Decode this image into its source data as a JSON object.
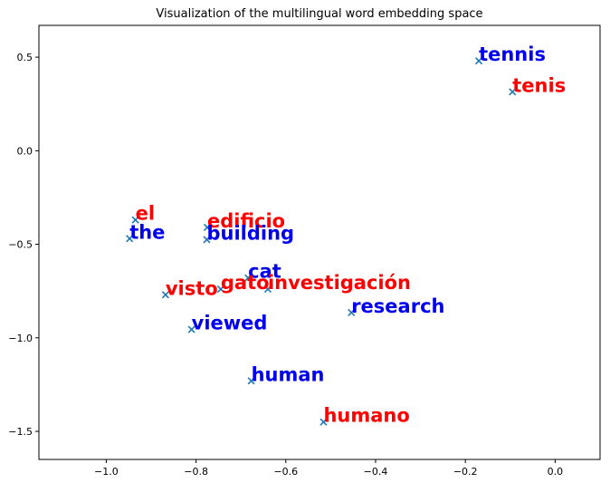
{
  "chart_data": {
    "type": "scatter",
    "title": "Visualization of the multilingual word embedding space",
    "xlabel": "",
    "ylabel": "",
    "xlim": [
      -1.15,
      0.1
    ],
    "ylim": [
      -1.65,
      0.67
    ],
    "grid": false,
    "legend": "none",
    "x_ticks": [
      -1.0,
      -0.8,
      -0.6,
      -0.4,
      -0.2,
      0.0
    ],
    "x_tick_labels": [
      "−1.0",
      "−0.8",
      "−0.6",
      "−0.4",
      "−0.2",
      "0.0"
    ],
    "y_ticks": [
      0.5,
      0.0,
      -0.5,
      -1.0,
      -1.5
    ],
    "y_tick_labels": [
      "0.5",
      "0.0",
      "−0.5",
      "−1.0",
      "−1.5"
    ],
    "marker_color": "#1f77b4",
    "label_colors": {
      "english": "#0000ee",
      "spanish": "#ff0000"
    },
    "points": [
      {
        "label": "tennis",
        "lang": "english",
        "x": -0.17,
        "y": 0.48
      },
      {
        "label": "tenis",
        "lang": "spanish",
        "x": -0.095,
        "y": 0.315
      },
      {
        "label": "el",
        "lang": "spanish",
        "x": -0.935,
        "y": -0.37
      },
      {
        "label": "the",
        "lang": "english",
        "x": -0.948,
        "y": -0.47
      },
      {
        "label": "edificio",
        "lang": "spanish",
        "x": -0.775,
        "y": -0.41
      },
      {
        "label": "building",
        "lang": "english",
        "x": -0.776,
        "y": -0.475
      },
      {
        "label": "cat",
        "lang": "english",
        "x": -0.684,
        "y": -0.68
      },
      {
        "label": "gato",
        "lang": "spanish",
        "x": -0.745,
        "y": -0.74
      },
      {
        "label": "investigación",
        "lang": "spanish",
        "x": -0.64,
        "y": -0.74
      },
      {
        "label": "visto",
        "lang": "spanish",
        "x": -0.868,
        "y": -0.77
      },
      {
        "label": "research",
        "lang": "english",
        "x": -0.454,
        "y": -0.865
      },
      {
        "label": "viewed",
        "lang": "english",
        "x": -0.81,
        "y": -0.955
      },
      {
        "label": "human",
        "lang": "english",
        "x": -0.677,
        "y": -1.23
      },
      {
        "label": "humano",
        "lang": "spanish",
        "x": -0.516,
        "y": -1.45
      }
    ]
  }
}
